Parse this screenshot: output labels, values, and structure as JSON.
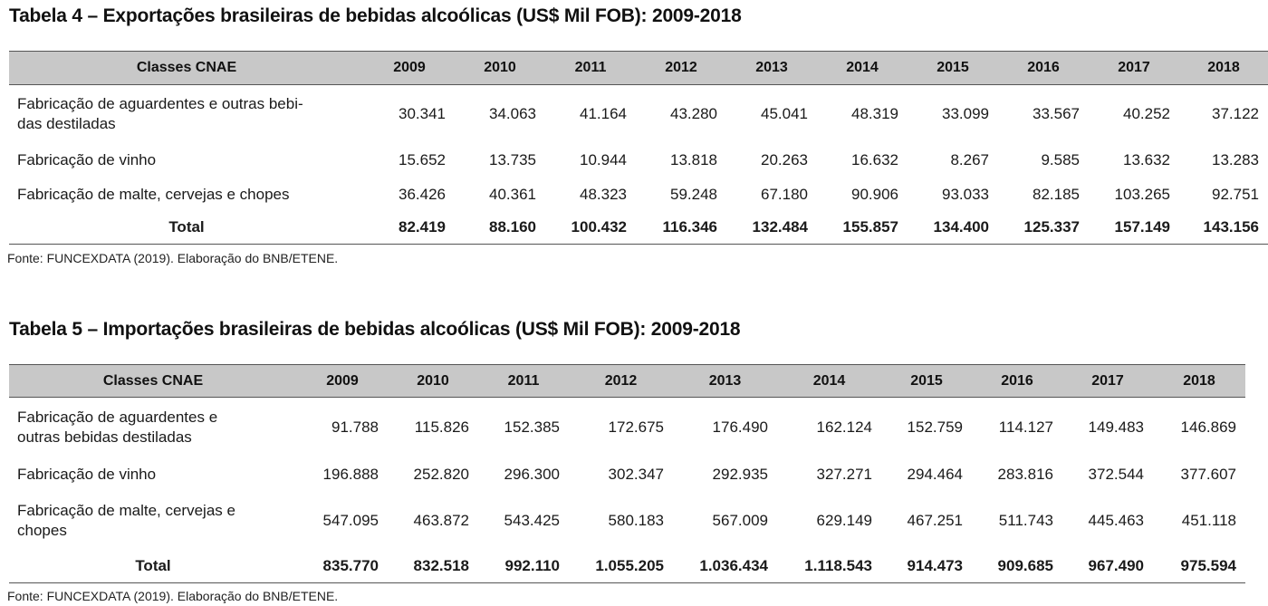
{
  "table4": {
    "title": "Tabela 4 – Exportações brasileiras de bebidas alcoólicas (US$ Mil FOB): 2009-2018",
    "header": [
      "Classes CNAE",
      "2009",
      "2010",
      "2011",
      "2012",
      "2013",
      "2014",
      "2015",
      "2016",
      "2017",
      "2018"
    ],
    "rows": [
      {
        "label": "Fabricação de aguardentes e outras bebi-\ndas destiladas",
        "values": [
          "30.341",
          "34.063",
          "41.164",
          "43.280",
          "45.041",
          "48.319",
          "33.099",
          "33.567",
          "40.252",
          "37.122"
        ]
      },
      {
        "label": "Fabricação de vinho",
        "values": [
          "15.652",
          "13.735",
          "10.944",
          "13.818",
          "20.263",
          "16.632",
          "8.267",
          "9.585",
          "13.632",
          "13.283"
        ]
      },
      {
        "label": "Fabricação de malte, cervejas e chopes",
        "values": [
          "36.426",
          "40.361",
          "48.323",
          "59.248",
          "67.180",
          "90.906",
          "93.033",
          "82.185",
          "103.265",
          "92.751"
        ]
      }
    ],
    "total": {
      "label": "Total",
      "values": [
        "82.419",
        "88.160",
        "100.432",
        "116.346",
        "132.484",
        "155.857",
        "134.400",
        "125.337",
        "157.149",
        "143.156"
      ]
    },
    "source": "Fonte: FUNCEXDATA (2019). Elaboração do BNB/ETENE."
  },
  "table5": {
    "title": "Tabela 5 – Importações brasileiras de bebidas alcoólicas (US$ Mil FOB): 2009-2018",
    "header": [
      "Classes CNAE",
      "2009",
      "2010",
      "2011",
      "2012",
      "2013",
      "2014",
      "2015",
      "2016",
      "2017",
      "2018"
    ],
    "rows": [
      {
        "label": "Fabricação de aguardentes e\noutras bebidas destiladas",
        "values": [
          "91.788",
          "115.826",
          "152.385",
          "172.675",
          "176.490",
          "162.124",
          "152.759",
          "114.127",
          "149.483",
          "146.869"
        ]
      },
      {
        "label": "Fabricação de vinho",
        "values": [
          "196.888",
          "252.820",
          "296.300",
          "302.347",
          "292.935",
          "327.271",
          "294.464",
          "283.816",
          "372.544",
          "377.607"
        ]
      },
      {
        "label": "Fabricação de malte, cervejas e\nchopes",
        "values": [
          "547.095",
          "463.872",
          "543.425",
          "580.183",
          "567.009",
          "629.149",
          "467.251",
          "511.743",
          "445.463",
          "451.118"
        ]
      }
    ],
    "total": {
      "label": "Total",
      "values": [
        "835.770",
        "832.518",
        "992.110",
        "1.055.205",
        "1.036.434",
        "1.118.543",
        "914.473",
        "909.685",
        "967.490",
        "975.594"
      ]
    },
    "source": "Fonte: FUNCEXDATA (2019). Elaboração do BNB/ETENE."
  }
}
